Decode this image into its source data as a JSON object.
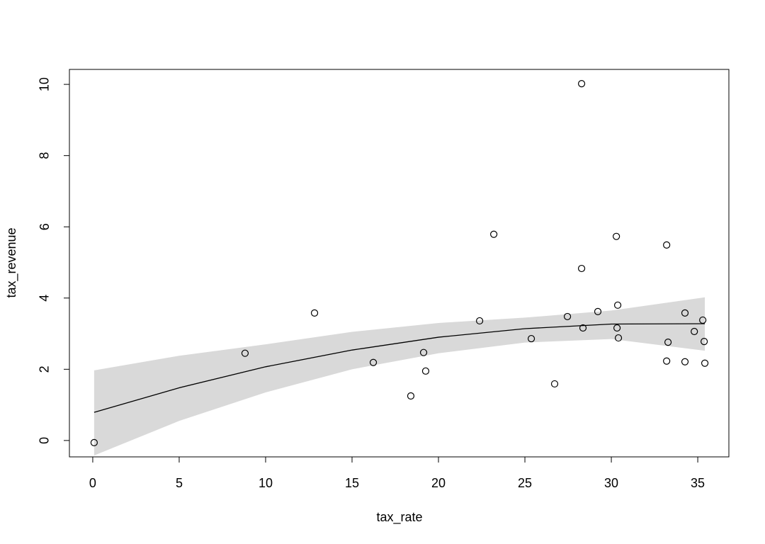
{
  "chart_data": {
    "type": "scatter",
    "x_label": "tax_rate",
    "y_label": "tax_revenue",
    "xlim": [
      -1.35,
      36.8
    ],
    "ylim": [
      -0.46,
      10.42
    ],
    "xticks": [
      0,
      5,
      10,
      15,
      20,
      25,
      30,
      35
    ],
    "yticks": [
      0,
      2,
      4,
      6,
      8,
      10
    ],
    "point_color": "#000000",
    "line_color": "#000000",
    "band_color": "#d9d9d9",
    "x": [
      0.08,
      8.81,
      12.83,
      16.23,
      18.4,
      19.14,
      19.26,
      22.38,
      23.2,
      25.37,
      26.72,
      27.46,
      28.28,
      28.28,
      28.36,
      29.22,
      30.29,
      30.33,
      30.37,
      30.41,
      33.2,
      33.2,
      33.28,
      34.26,
      34.26,
      34.8,
      35.29,
      35.37,
      35.41
    ],
    "y": [
      -0.06,
      2.45,
      3.58,
      2.19,
      1.25,
      2.47,
      1.95,
      3.36,
      5.79,
      2.86,
      1.59,
      3.48,
      10.02,
      4.83,
      3.16,
      3.62,
      5.73,
      3.16,
      3.8,
      2.88,
      5.49,
      2.23,
      2.76,
      3.58,
      2.21,
      3.06,
      3.38,
      2.78,
      2.17
    ],
    "fit": {
      "x": [
        0.08,
        5,
        10,
        15,
        20,
        25,
        30,
        35.41
      ],
      "y": [
        0.79,
        1.48,
        2.07,
        2.54,
        2.9,
        3.14,
        3.27,
        3.28
      ],
      "lower": [
        -0.42,
        0.55,
        1.35,
        2.0,
        2.45,
        2.75,
        2.85,
        2.52
      ],
      "upper": [
        1.97,
        2.38,
        2.7,
        3.05,
        3.3,
        3.45,
        3.65,
        4.02
      ]
    }
  }
}
